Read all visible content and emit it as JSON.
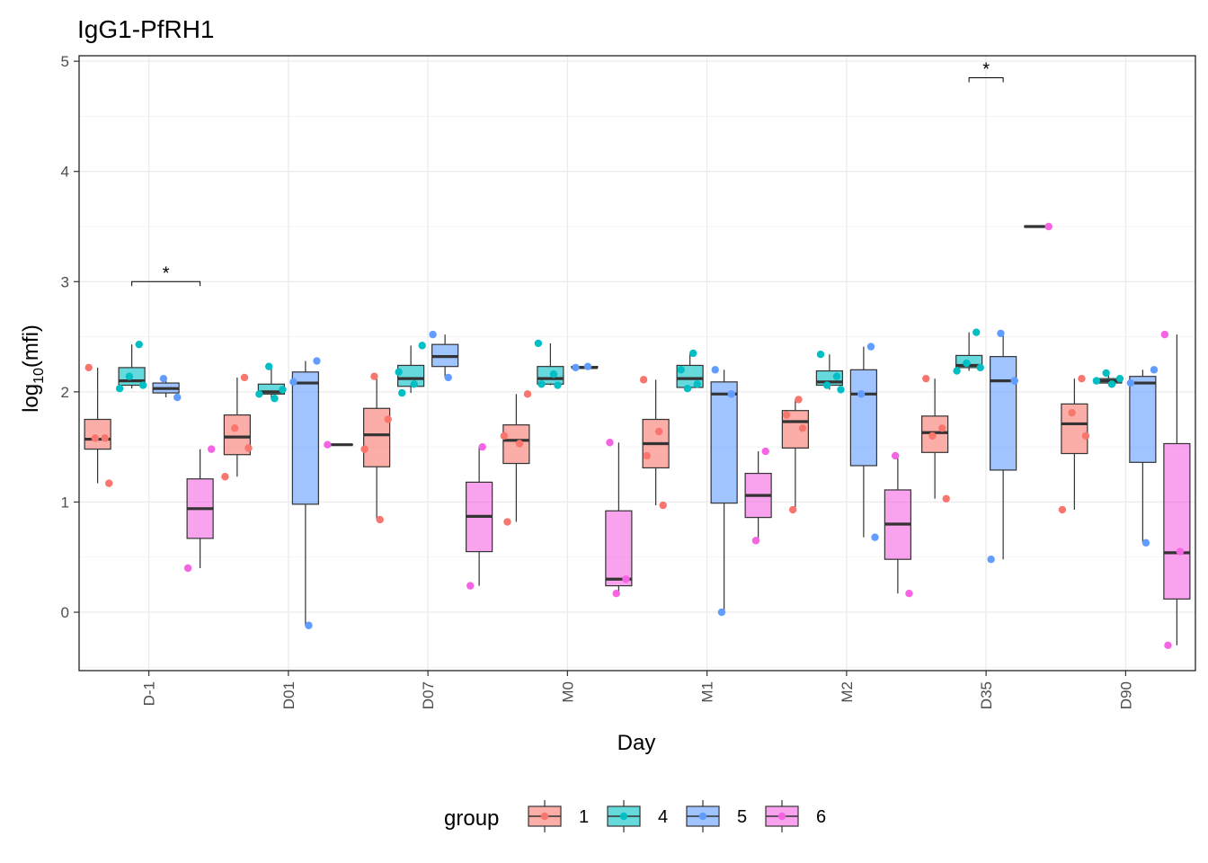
{
  "chart_data": {
    "type": "box",
    "title": "IgG1-PfRH1",
    "xlabel": "Day",
    "ylabel_base": "log",
    "ylabel_sub": "10",
    "ylabel_rest": "(mfi)",
    "ylim": [
      -0.53,
      5.05
    ],
    "yticks": [
      0,
      1,
      2,
      3,
      4,
      5
    ],
    "grid": true,
    "legend_position": "bottom",
    "legend_title": "group",
    "categories": [
      "D-1",
      "D01",
      "D07",
      "M0",
      "M1",
      "M2",
      "D35",
      "D90"
    ],
    "groups": [
      {
        "name": "1",
        "fill": "#F8766D",
        "point": "#F8766D"
      },
      {
        "name": "4",
        "fill": "#00BFC4",
        "point": "#00BFC4"
      },
      {
        "name": "5",
        "fill": "#619CFF",
        "point": "#619CFF"
      },
      {
        "name": "6",
        "fill": "#F564E3",
        "point": "#F564E3"
      }
    ],
    "boxes": [
      [
        {
          "min": 1.17,
          "q1": 1.48,
          "median": 1.57,
          "q3": 1.75,
          "max": 2.22
        },
        {
          "min": 2.03,
          "q1": 2.06,
          "median": 2.1,
          "q3": 2.22,
          "max": 2.43
        },
        {
          "min": 1.95,
          "q1": 1.99,
          "median": 2.03,
          "q3": 2.08,
          "max": 2.12
        },
        {
          "min": 0.4,
          "q1": 0.67,
          "median": 0.94,
          "q3": 1.21,
          "max": 1.48
        }
      ],
      [
        {
          "min": 1.23,
          "q1": 1.43,
          "median": 1.59,
          "q3": 1.79,
          "max": 2.13
        },
        {
          "min": 1.94,
          "q1": 1.98,
          "median": 2.0,
          "q3": 2.07,
          "max": 2.23
        },
        {
          "min": -0.12,
          "q1": 0.98,
          "median": 2.08,
          "q3": 2.18,
          "max": 2.28
        },
        {
          "min": 1.52,
          "q1": 1.52,
          "median": 1.52,
          "q3": 1.52,
          "max": 1.52
        }
      ],
      [
        {
          "min": 0.84,
          "q1": 1.32,
          "median": 1.61,
          "q3": 1.85,
          "max": 2.14
        },
        {
          "min": 1.99,
          "q1": 2.05,
          "median": 2.12,
          "q3": 2.24,
          "max": 2.42
        },
        {
          "min": 2.13,
          "q1": 2.23,
          "median": 2.32,
          "q3": 2.43,
          "max": 2.52
        },
        {
          "min": 0.24,
          "q1": 0.55,
          "median": 0.87,
          "q3": 1.18,
          "max": 1.5
        }
      ],
      [
        {
          "min": 0.82,
          "q1": 1.35,
          "median": 1.56,
          "q3": 1.7,
          "max": 1.98
        },
        {
          "min": 2.06,
          "q1": 2.07,
          "median": 2.12,
          "q3": 2.23,
          "max": 2.44
        },
        {
          "min": 2.22,
          "q1": 2.22,
          "median": 2.22,
          "q3": 2.23,
          "max": 2.23
        },
        {
          "min": 0.17,
          "q1": 0.24,
          "median": 0.3,
          "q3": 0.92,
          "max": 1.54
        }
      ],
      [
        {
          "min": 0.97,
          "q1": 1.31,
          "median": 1.53,
          "q3": 1.75,
          "max": 2.11
        },
        {
          "min": 2.03,
          "q1": 2.04,
          "median": 2.12,
          "q3": 2.24,
          "max": 2.35
        },
        {
          "min": 0.0,
          "q1": 0.99,
          "median": 1.98,
          "q3": 2.09,
          "max": 2.2
        },
        {
          "min": 0.65,
          "q1": 0.86,
          "median": 1.06,
          "q3": 1.26,
          "max": 1.46
        }
      ],
      [
        {
          "min": 0.93,
          "q1": 1.49,
          "median": 1.73,
          "q3": 1.83,
          "max": 1.93
        },
        {
          "min": 2.02,
          "q1": 2.06,
          "median": 2.09,
          "q3": 2.19,
          "max": 2.34
        },
        {
          "min": 0.68,
          "q1": 1.33,
          "median": 1.98,
          "q3": 2.2,
          "max": 2.41
        },
        {
          "min": 0.17,
          "q1": 0.48,
          "median": 0.8,
          "q3": 1.11,
          "max": 1.42
        }
      ],
      [
        {
          "min": 1.03,
          "q1": 1.45,
          "median": 1.63,
          "q3": 1.78,
          "max": 2.12
        },
        {
          "min": 2.19,
          "q1": 2.22,
          "median": 2.24,
          "q3": 2.33,
          "max": 2.54
        },
        {
          "min": 0.48,
          "q1": 1.29,
          "median": 2.1,
          "q3": 2.32,
          "max": 2.53
        },
        {
          "min": 3.5,
          "q1": 3.5,
          "median": 3.5,
          "q3": 3.5,
          "max": 3.5
        }
      ],
      [
        {
          "min": 0.93,
          "q1": 1.44,
          "median": 1.71,
          "q3": 1.89,
          "max": 2.12
        },
        {
          "min": 2.07,
          "q1": 2.08,
          "median": 2.1,
          "q3": 2.12,
          "max": 2.17
        },
        {
          "min": 0.63,
          "q1": 1.36,
          "median": 2.08,
          "q3": 2.14,
          "max": 2.2
        },
        {
          "min": -0.3,
          "q1": 0.12,
          "median": 0.54,
          "q3": 1.53,
          "max": 2.52
        }
      ]
    ],
    "points": [
      [
        [
          2.22,
          1.58,
          1.58,
          1.17
        ],
        [
          2.43,
          2.14,
          2.06,
          2.03
        ],
        [
          2.12,
          1.95
        ],
        [
          1.48,
          0.4
        ]
      ],
      [
        [
          2.13,
          1.67,
          1.49,
          1.23
        ],
        [
          2.23,
          2.02,
          1.98,
          1.94
        ],
        [
          2.28,
          2.09,
          -0.12
        ],
        [
          1.52
        ]
      ],
      [
        [
          2.14,
          1.75,
          1.48,
          0.84
        ],
        [
          2.42,
          2.18,
          2.07,
          1.99
        ],
        [
          2.52,
          2.13
        ],
        [
          1.5,
          0.24
        ]
      ],
      [
        [
          1.98,
          1.6,
          1.53,
          0.82
        ],
        [
          2.44,
          2.16,
          2.07,
          2.06
        ],
        [
          2.23,
          2.22
        ],
        [
          1.54,
          0.3,
          0.17
        ]
      ],
      [
        [
          2.11,
          1.64,
          1.42,
          0.97
        ],
        [
          2.35,
          2.2,
          2.07,
          2.03
        ],
        [
          2.2,
          1.98,
          0.0
        ],
        [
          1.46,
          0.65
        ]
      ],
      [
        [
          1.93,
          1.79,
          1.67,
          0.93
        ],
        [
          2.34,
          2.14,
          2.06,
          2.02
        ],
        [
          2.41,
          1.98,
          0.68
        ],
        [
          1.42,
          0.17
        ]
      ],
      [
        [
          2.12,
          1.67,
          1.6,
          1.03
        ],
        [
          2.54,
          2.26,
          2.22,
          2.19
        ],
        [
          2.53,
          2.1,
          0.48
        ],
        [
          3.5
        ]
      ],
      [
        [
          2.12,
          1.81,
          1.6,
          0.93
        ],
        [
          2.17,
          2.12,
          2.1,
          2.07
        ],
        [
          2.2,
          2.08,
          0.63
        ],
        [
          2.52,
          0.55,
          -0.3
        ]
      ]
    ],
    "significance": [
      {
        "category": "D-1",
        "from_group": "4",
        "to_group": "6",
        "y": 3.0,
        "label": "*"
      },
      {
        "category": "D35",
        "from_group": "4",
        "to_group": "5",
        "y": 4.85,
        "label": "*"
      }
    ]
  }
}
